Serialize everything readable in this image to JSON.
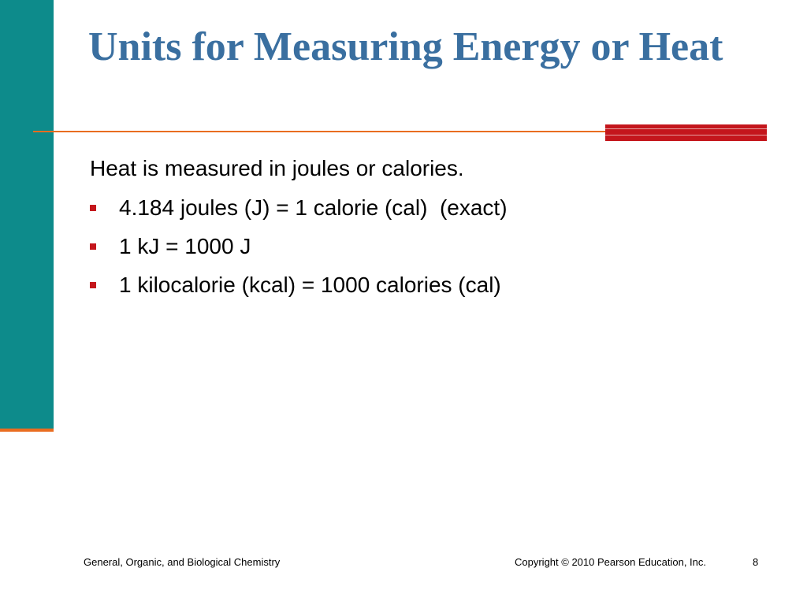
{
  "slide": {
    "title": "Units for Measuring Energy or Heat",
    "lead": "Heat is measured in joules or calories.",
    "bullets": [
      "4.184 joules (J) = 1 calorie (cal)  (exact)",
      "1 kJ = 1000 J",
      "1 kilocalorie (kcal) = 1000 calories (cal)"
    ]
  },
  "footer": {
    "left": "General, Organic, and Biological Chemistry",
    "copyright": "Copyright © 2010 Pearson Education, Inc.",
    "page_number": "8"
  },
  "colors": {
    "teal_bar": "#0d8b8b",
    "title": "#3a6fa0",
    "rule": "#e96d20",
    "accent": "#c4161c"
  }
}
